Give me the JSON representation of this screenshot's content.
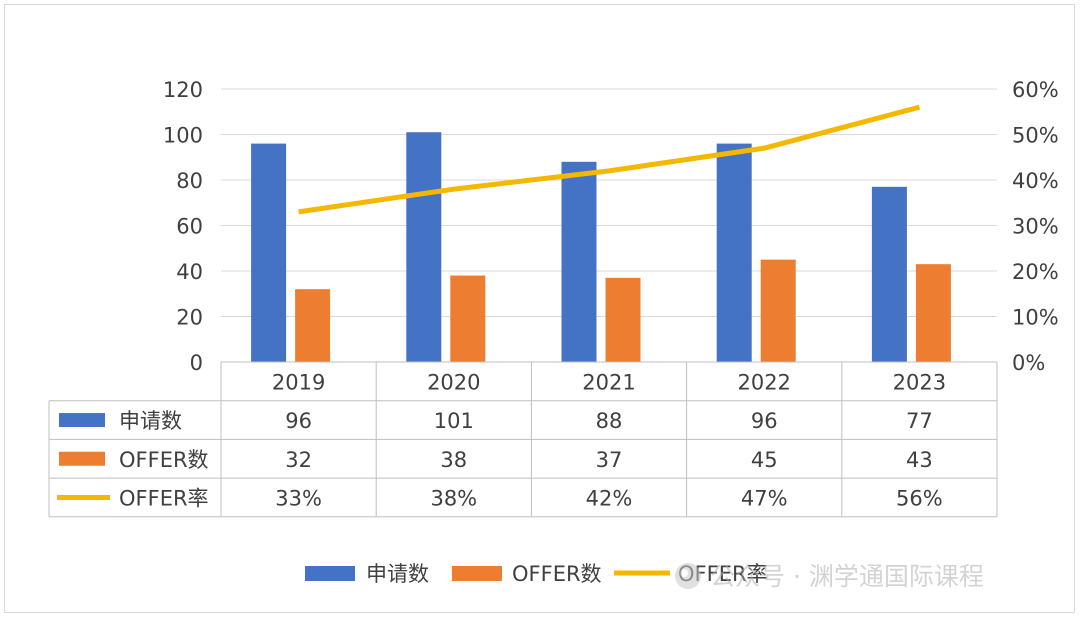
{
  "chart_data": {
    "type": "bar",
    "categories": [
      "2019",
      "2020",
      "2021",
      "2022",
      "2023"
    ],
    "series": [
      {
        "name": "申请数",
        "kind": "bar",
        "axis": "left",
        "color": "#4472C4",
        "values": [
          96,
          101,
          88,
          96,
          77
        ],
        "labels": [
          "96",
          "101",
          "88",
          "96",
          "77"
        ]
      },
      {
        "name": "OFFER数",
        "kind": "bar",
        "axis": "left",
        "color": "#ED7D31",
        "values": [
          32,
          38,
          37,
          45,
          43
        ],
        "labels": [
          "32",
          "38",
          "37",
          "45",
          "43"
        ]
      },
      {
        "name": "OFFER率",
        "kind": "line",
        "axis": "right",
        "color": "#F5B800",
        "values": [
          0.33,
          0.38,
          0.42,
          0.47,
          0.56
        ],
        "labels": [
          "33%",
          "38%",
          "42%",
          "47%",
          "56%"
        ]
      }
    ],
    "ylim": [
      0,
      120
    ],
    "yticks": [
      "0",
      "20",
      "40",
      "60",
      "80",
      "100",
      "120"
    ],
    "y2lim": [
      0,
      0.6
    ],
    "y2ticks": [
      "0%",
      "10%",
      "20%",
      "30%",
      "40%",
      "50%",
      "60%"
    ],
    "grid": true,
    "data_table": true,
    "legend_position": "bottom"
  },
  "watermark": "公众号 · 渊学通国际课程"
}
